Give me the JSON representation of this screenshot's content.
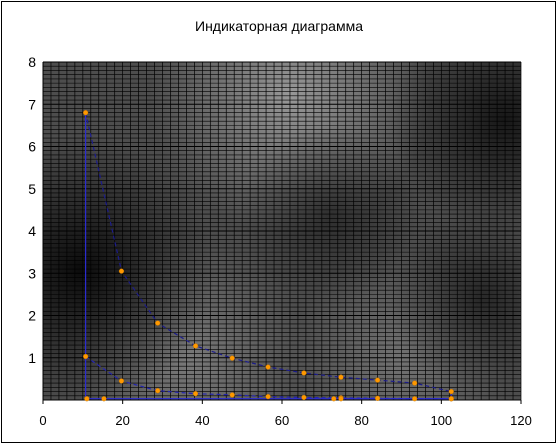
{
  "chart_data": {
    "type": "line",
    "title": "Индикаторная диаграмма",
    "xlabel": "",
    "ylabel": "",
    "xlim": [
      0,
      120
    ],
    "ylim": [
      0,
      8
    ],
    "x_ticks": [
      0,
      20,
      40,
      60,
      80,
      100,
      120
    ],
    "y_ticks": [
      1,
      2,
      3,
      4,
      5,
      6,
      7,
      8
    ],
    "grid": true,
    "x_grid_step": 2,
    "y_grid_step": 0.1,
    "y_major_grid_step": 1,
    "series": [
      {
        "x": [
          10.7,
          19.7,
          28.8,
          38.3,
          47.5,
          56.5,
          65.5,
          74.8,
          84.0,
          93.3,
          102.5
        ],
        "y": [
          6.8,
          3.05,
          1.82,
          1.28,
          0.99,
          0.78,
          0.64,
          0.54,
          0.47,
          0.4,
          0.2
        ],
        "dashed": true,
        "markers": true,
        "line_color": "#1c1c8c",
        "marker_color": "#ff9900"
      },
      {
        "x": [
          10.7,
          19.7,
          28.8,
          38.3,
          47.5,
          56.5,
          65.5,
          74.8,
          84.0,
          93.3,
          102.5
        ],
        "y": [
          1.03,
          0.45,
          0.22,
          0.15,
          0.12,
          0.08,
          0.06,
          0.05,
          0.04,
          0.03,
          0.03
        ],
        "dashed": true,
        "markers": true,
        "line_color": "#2424b0",
        "marker_color": "#ff9900"
      },
      {
        "x": [
          10.7,
          10.7
        ],
        "y": [
          0.03,
          6.8
        ],
        "dashed": false,
        "markers": false,
        "line_color": "#2b2bd0",
        "marker_color": "#ff9900"
      },
      {
        "x": [
          11.0,
          15.3,
          73.0,
          74.8,
          102.5
        ],
        "y": [
          0.03,
          0.03,
          0.03,
          0.03,
          0.03
        ],
        "dashed": false,
        "markers": true,
        "line_color": "#2b2bd0",
        "marker_color": "#ff9900"
      },
      {
        "x": [
          102.5,
          102.5
        ],
        "y": [
          0.2,
          0.03
        ],
        "dashed": false,
        "markers": false,
        "line_color": "#2b2bd0",
        "marker_color": "#ff9900"
      }
    ]
  },
  "colors": {
    "page_background": "#ffffff",
    "plot_area": "#4d4d4d",
    "gridlines": "#000000"
  }
}
